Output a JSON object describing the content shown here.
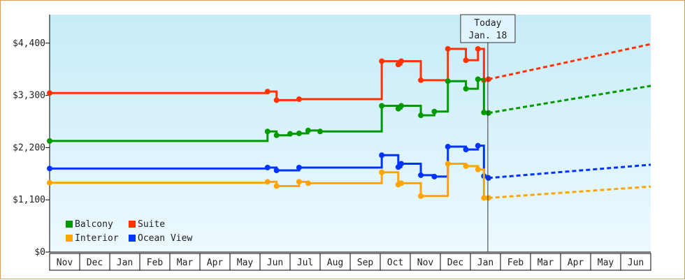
{
  "chart_data": {
    "type": "line",
    "step": true,
    "y_ticks": [
      "$0",
      "$1,100",
      "$2,200",
      "$3,300",
      "$4,400"
    ],
    "ylim": [
      0,
      5000
    ],
    "x_months": [
      "Nov",
      "Dec",
      "Jan",
      "Feb",
      "Mar",
      "Apr",
      "May",
      "Jun",
      "Jul",
      "Aug",
      "Sep",
      "Oct",
      "Nov",
      "Dec",
      "Jan",
      "Feb",
      "Mar",
      "Apr",
      "May",
      "Jun"
    ],
    "today": {
      "line1": "Today",
      "line2": "Jan. 18",
      "month_index": 14.58
    },
    "legend_placement": "bottom-left",
    "series": [
      {
        "name": "Suite",
        "color": "#ff3300",
        "points": [
          [
            0,
            3350
          ],
          [
            7.2,
            3350
          ],
          [
            7.25,
            3380
          ],
          [
            7.5,
            3380
          ],
          [
            7.55,
            3200
          ],
          [
            7.8,
            3200
          ],
          [
            8.3,
            3220
          ],
          [
            8.6,
            3220
          ],
          [
            9.0,
            3220
          ],
          [
            11.0,
            3220
          ],
          [
            11.05,
            4020
          ],
          [
            11.5,
            4020
          ],
          [
            11.6,
            3950
          ],
          [
            11.7,
            4020
          ],
          [
            12.3,
            4020
          ],
          [
            12.35,
            3620
          ],
          [
            13.0,
            3620
          ],
          [
            13.2,
            3620
          ],
          [
            13.25,
            4280
          ],
          [
            13.8,
            4280
          ],
          [
            13.85,
            4040
          ],
          [
            14.2,
            4040
          ],
          [
            14.25,
            4280
          ],
          [
            14.4,
            4280
          ],
          [
            14.45,
            3620
          ],
          [
            14.6,
            3640
          ]
        ],
        "forecast": [
          [
            14.6,
            3640
          ],
          [
            20,
            4380
          ]
        ]
      },
      {
        "name": "Balcony",
        "color": "#009900",
        "points": [
          [
            0,
            2340
          ],
          [
            7.2,
            2340
          ],
          [
            7.25,
            2540
          ],
          [
            7.5,
            2540
          ],
          [
            7.55,
            2460
          ],
          [
            7.8,
            2460
          ],
          [
            8.0,
            2490
          ],
          [
            8.3,
            2500
          ],
          [
            8.6,
            2560
          ],
          [
            9.0,
            2540
          ],
          [
            11.0,
            2540
          ],
          [
            11.05,
            3080
          ],
          [
            11.5,
            3080
          ],
          [
            11.6,
            3020
          ],
          [
            11.7,
            3080
          ],
          [
            12.3,
            3080
          ],
          [
            12.35,
            2880
          ],
          [
            12.6,
            2880
          ],
          [
            12.8,
            2960
          ],
          [
            13.0,
            2960
          ],
          [
            13.25,
            3600
          ],
          [
            13.8,
            3600
          ],
          [
            13.85,
            3440
          ],
          [
            14.2,
            3440
          ],
          [
            14.25,
            3640
          ],
          [
            14.4,
            3640
          ],
          [
            14.45,
            2940
          ],
          [
            14.6,
            2930
          ]
        ],
        "forecast": [
          [
            14.6,
            2930
          ],
          [
            20,
            3500
          ]
        ]
      },
      {
        "name": "Ocean View",
        "color": "#0033ff",
        "points": [
          [
            0,
            1760
          ],
          [
            7.2,
            1760
          ],
          [
            7.25,
            1780
          ],
          [
            7.5,
            1780
          ],
          [
            7.55,
            1720
          ],
          [
            7.8,
            1720
          ],
          [
            8.3,
            1780
          ],
          [
            8.6,
            1780
          ],
          [
            9.0,
            1780
          ],
          [
            11.0,
            1780
          ],
          [
            11.05,
            2040
          ],
          [
            11.5,
            2040
          ],
          [
            11.6,
            1790
          ],
          [
            11.7,
            1860
          ],
          [
            12.3,
            1860
          ],
          [
            12.35,
            1620
          ],
          [
            12.6,
            1620
          ],
          [
            12.8,
            1590
          ],
          [
            13.0,
            1590
          ],
          [
            13.25,
            2220
          ],
          [
            13.8,
            2220
          ],
          [
            13.85,
            2160
          ],
          [
            14.2,
            2160
          ],
          [
            14.25,
            2240
          ],
          [
            14.4,
            2240
          ],
          [
            14.45,
            1600
          ],
          [
            14.6,
            1560
          ]
        ],
        "forecast": [
          [
            14.6,
            1560
          ],
          [
            20,
            1840
          ]
        ]
      },
      {
        "name": "Interior",
        "color": "#ffa500",
        "points": [
          [
            0,
            1460
          ],
          [
            7.2,
            1460
          ],
          [
            7.25,
            1480
          ],
          [
            7.5,
            1480
          ],
          [
            7.55,
            1390
          ],
          [
            7.8,
            1390
          ],
          [
            8.3,
            1480
          ],
          [
            8.6,
            1450
          ],
          [
            9.0,
            1450
          ],
          [
            11.0,
            1450
          ],
          [
            11.05,
            1680
          ],
          [
            11.5,
            1680
          ],
          [
            11.6,
            1420
          ],
          [
            11.7,
            1450
          ],
          [
            12.3,
            1450
          ],
          [
            12.35,
            1180
          ],
          [
            13.0,
            1180
          ],
          [
            13.25,
            1860
          ],
          [
            13.8,
            1860
          ],
          [
            13.85,
            1810
          ],
          [
            14.2,
            1810
          ],
          [
            14.25,
            1740
          ],
          [
            14.4,
            1740
          ],
          [
            14.45,
            1140
          ],
          [
            14.6,
            1140
          ]
        ],
        "forecast": [
          [
            14.6,
            1140
          ],
          [
            20,
            1380
          ]
        ]
      }
    ],
    "legend_order": [
      "Balcony",
      "Suite",
      "Interior",
      "Ocean View"
    ]
  }
}
